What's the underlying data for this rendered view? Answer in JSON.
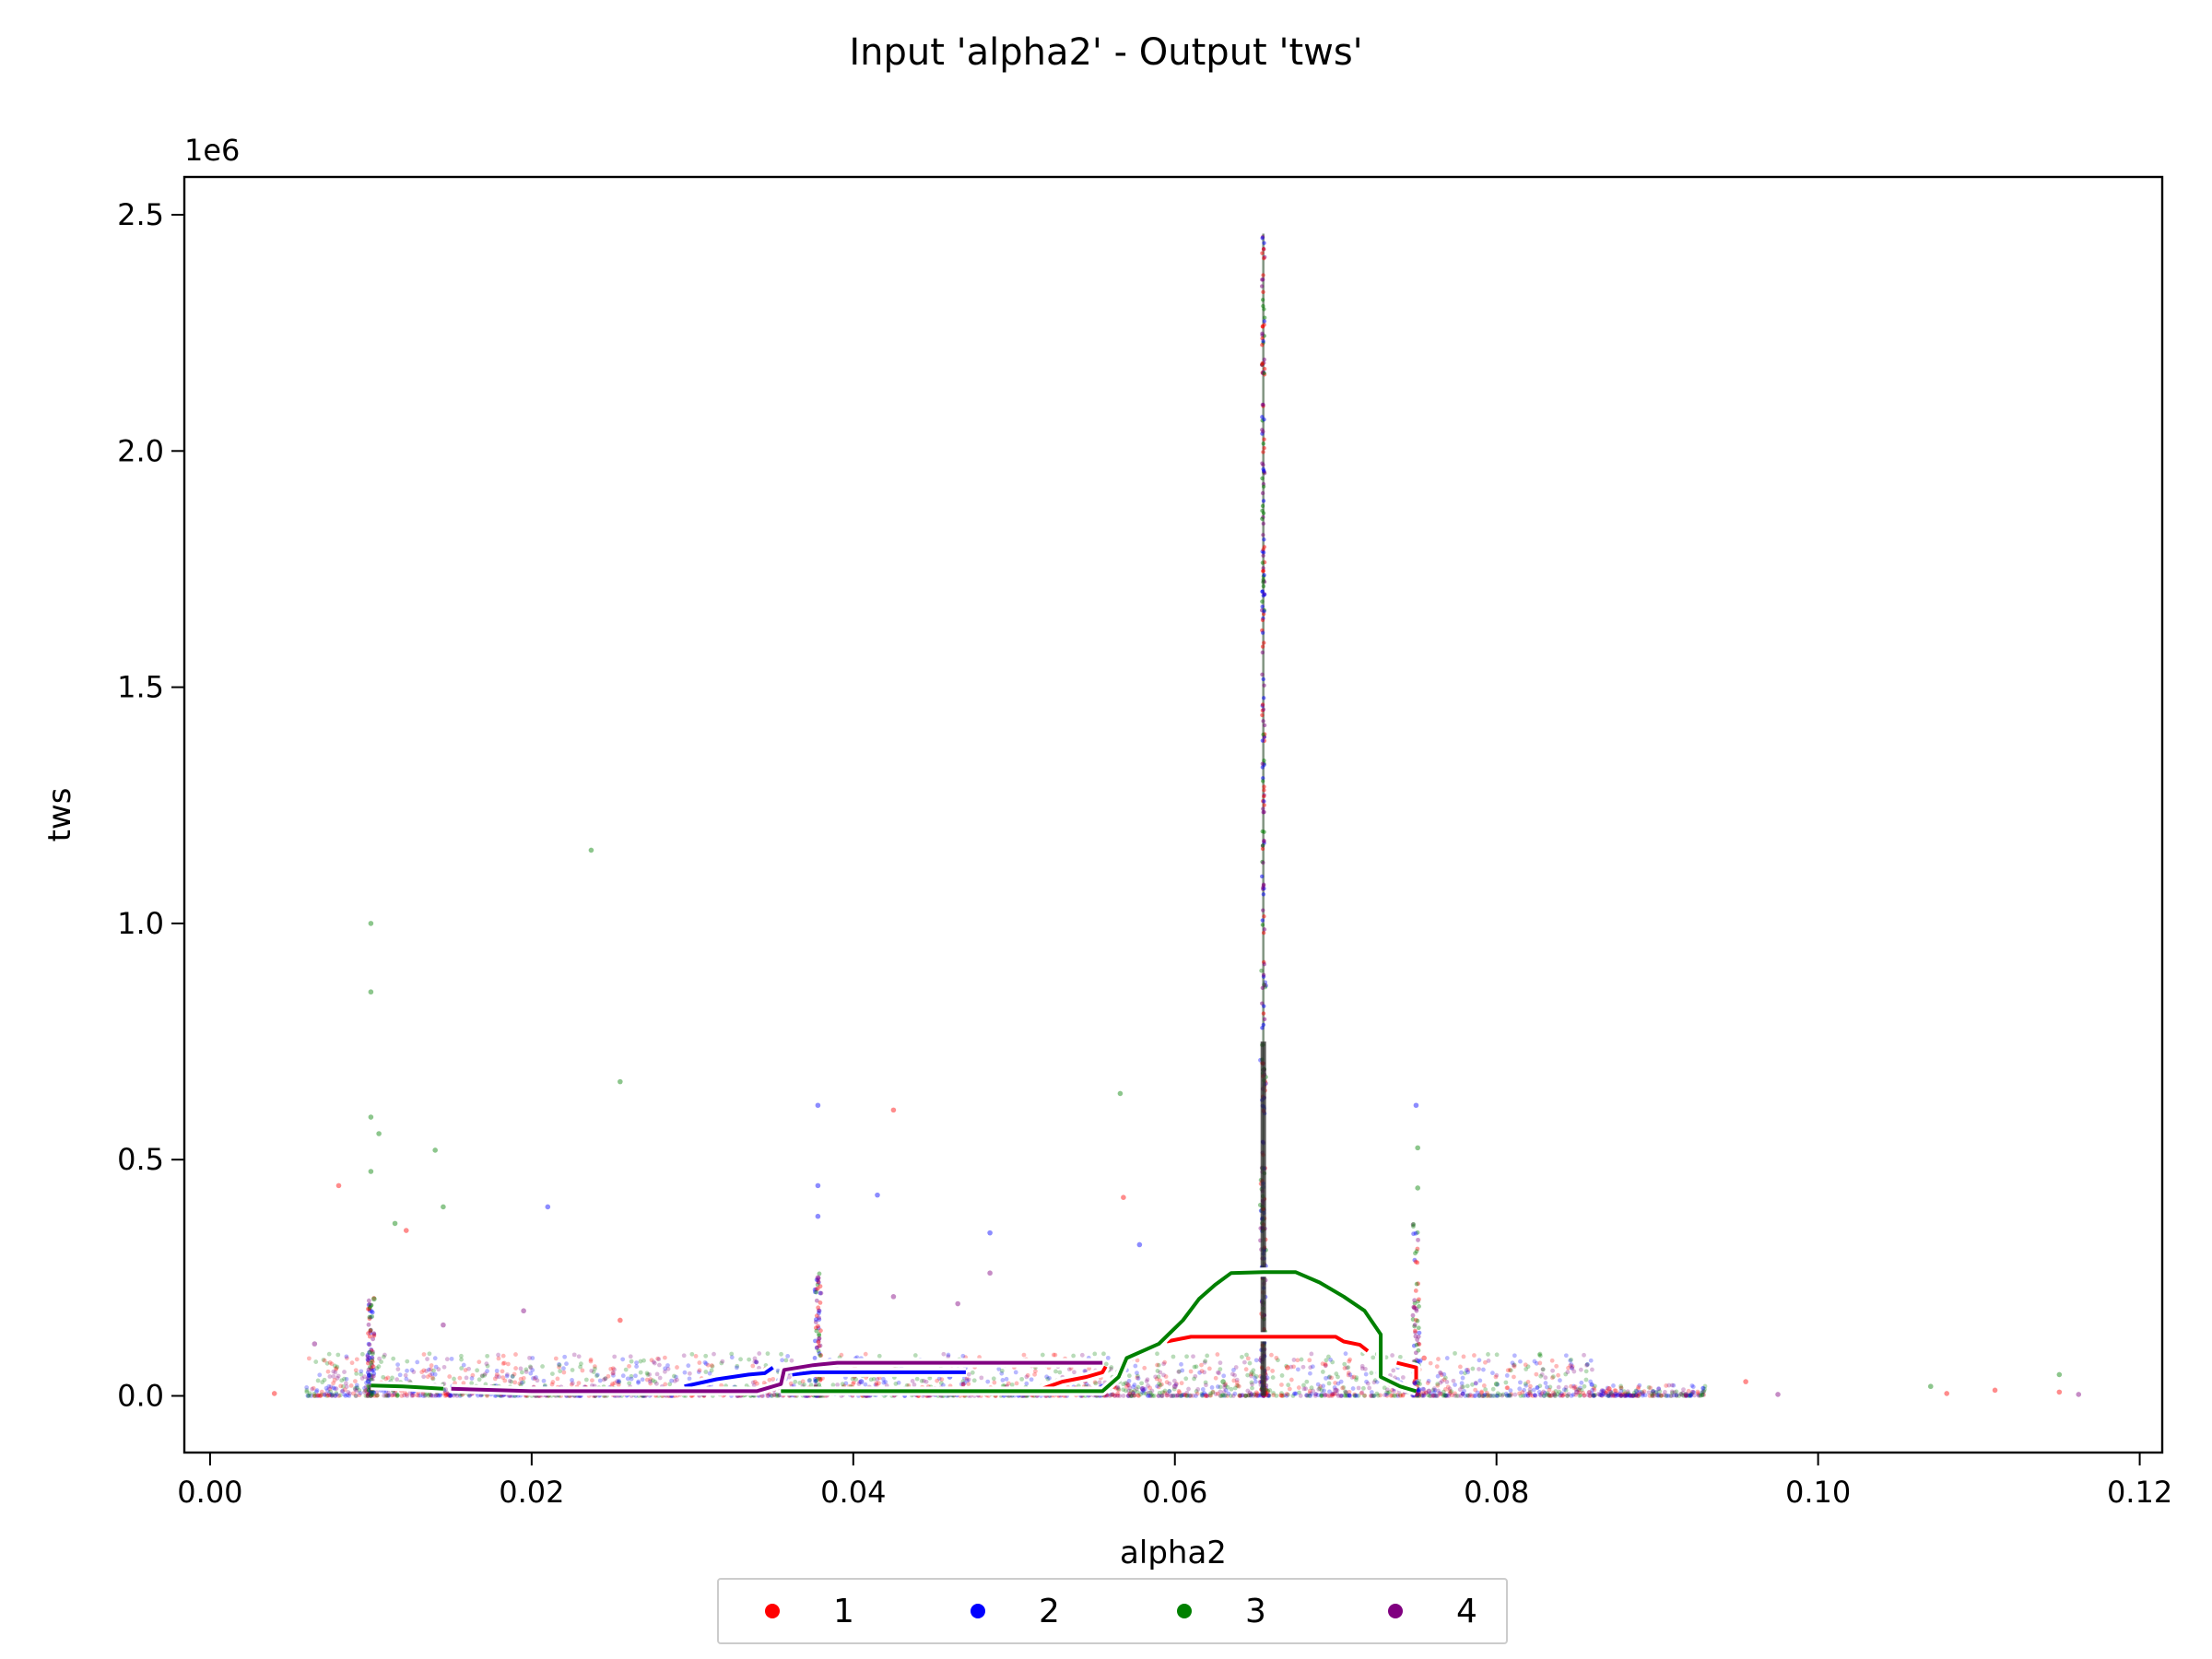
{
  "chart_data": {
    "type": "scatter",
    "title": "Input 'alpha2' - Output 'tws'",
    "xlabel": "alpha2",
    "ylabel": "tws",
    "y_multiplier_label": "1e6",
    "xlim": [
      -0.0016,
      0.1214
    ],
    "ylim": [
      -120000,
      2580000
    ],
    "xticks": [
      0.0,
      0.02,
      0.04,
      0.06,
      0.08,
      0.1,
      0.12
    ],
    "xtick_labels": [
      "0.00",
      "0.02",
      "0.04",
      "0.06",
      "0.08",
      "0.10",
      "0.12"
    ],
    "yticks": [
      0,
      500000,
      1000000,
      1500000,
      2000000,
      2500000
    ],
    "ytick_labels": [
      "0.0",
      "0.5",
      "1.0",
      "1.5",
      "2.0",
      "2.5"
    ],
    "grid": false,
    "legend_position": "bottom-center",
    "series": [
      {
        "name": "1",
        "color": "#ff0000",
        "points": [
          [
            0.004,
            5000
          ],
          [
            0.008,
            445000
          ],
          [
            0.0122,
            350000
          ],
          [
            0.0255,
            160000
          ],
          [
            0.0425,
            605000
          ],
          [
            0.0568,
            420000
          ],
          [
            0.067,
            60000
          ],
          [
            0.0755,
            80000
          ],
          [
            0.087,
            15000
          ],
          [
            0.0955,
            30000
          ],
          [
            0.108,
            5000
          ],
          [
            0.111,
            12000
          ],
          [
            0.115,
            8000
          ]
        ],
        "contour": [
          [
            0.0515,
            12000
          ],
          [
            0.053,
            30000
          ],
          [
            0.0545,
            40000
          ],
          [
            0.0555,
            50000
          ],
          [
            0.0557,
            62000
          ],
          [
            null,
            null
          ],
          [
            0.0595,
            115000
          ],
          [
            0.061,
            125000
          ],
          [
            0.0675,
            125000
          ],
          [
            0.07,
            125000
          ],
          [
            0.0705,
            115000
          ],
          [
            0.0715,
            108000
          ],
          [
            0.072,
            95000
          ],
          [
            null,
            null
          ],
          [
            0.0738,
            70000
          ],
          [
            0.075,
            60000
          ],
          [
            0.075,
            35000
          ]
        ]
      },
      {
        "name": "2",
        "color": "#0000ff",
        "points": [
          [
            0.0378,
            615000
          ],
          [
            0.0378,
            445000
          ],
          [
            0.0415,
            425000
          ],
          [
            0.0378,
            380000
          ],
          [
            0.021,
            400000
          ],
          [
            0.0485,
            345000
          ],
          [
            0.075,
            615000
          ],
          [
            0.0578,
            320000
          ],
          [
            0.0405,
            30000
          ],
          [
            0.046,
            40000
          ],
          [
            0.0555,
            20000
          ]
        ],
        "contour": [
          [
            0.0295,
            20000
          ],
          [
            0.0315,
            35000
          ],
          [
            0.0335,
            45000
          ],
          [
            0.0345,
            48000
          ],
          [
            0.035,
            60000
          ],
          [
            null,
            null
          ],
          [
            0.0362,
            45000
          ],
          [
            0.0375,
            50000
          ],
          [
            0.047,
            50000
          ]
        ]
      },
      {
        "name": "3",
        "color": "#008000",
        "points": [
          [
            0.0237,
            1155000
          ],
          [
            0.01,
            1000000
          ],
          [
            0.01,
            855000
          ],
          [
            0.01,
            590000
          ],
          [
            0.0105,
            555000
          ],
          [
            0.014,
            520000
          ],
          [
            0.0255,
            665000
          ],
          [
            0.0566,
            640000
          ],
          [
            0.0751,
            525000
          ],
          [
            0.0751,
            440000
          ],
          [
            0.0115,
            365000
          ],
          [
            0.0145,
            400000
          ],
          [
            0.01,
            475000
          ],
          [
            0.0102,
            205000
          ],
          [
            0.107,
            20000
          ],
          [
            0.115,
            45000
          ],
          [
            0.04,
            10000
          ],
          [
            0.063,
            30000
          ],
          [
            0.08,
            25000
          ]
        ],
        "contour": [
          [
            0.01,
            22000
          ],
          [
            0.012,
            20000
          ],
          [
            0.0145,
            15000
          ],
          [
            null,
            null
          ],
          [
            0.0355,
            10000
          ],
          [
            0.05,
            10000
          ],
          [
            0.0555,
            10000
          ],
          [
            0.0565,
            40000
          ],
          [
            0.057,
            80000
          ],
          [
            0.059,
            110000
          ],
          [
            0.0605,
            160000
          ],
          [
            0.0615,
            205000
          ],
          [
            0.0625,
            235000
          ],
          [
            0.0635,
            260000
          ],
          [
            0.0655,
            262000
          ],
          [
            0.0675,
            262000
          ],
          [
            0.069,
            240000
          ],
          [
            0.0705,
            210000
          ],
          [
            0.0718,
            180000
          ],
          [
            0.0728,
            130000
          ],
          [
            0.0728,
            40000
          ],
          [
            0.074,
            20000
          ],
          [
            0.075,
            10000
          ]
        ]
      },
      {
        "name": "4",
        "color": "#800080",
        "points": [
          [
            0.0065,
            110000
          ],
          [
            0.0195,
            180000
          ],
          [
            0.0378,
            250000
          ],
          [
            0.0425,
            210000
          ],
          [
            0.0465,
            195000
          ],
          [
            0.0485,
            260000
          ],
          [
            0.0145,
            150000
          ],
          [
            0.06,
            20000
          ],
          [
            0.0758,
            10000
          ],
          [
            0.085,
            8000
          ],
          [
            0.0918,
            3000
          ],
          [
            0.0975,
            3000
          ],
          [
            0.1162,
            3000
          ],
          [
            0.058,
            15000
          ],
          [
            0.07,
            12000
          ]
        ],
        "contour": [
          [
            0.015,
            15000
          ],
          [
            0.02,
            10000
          ],
          [
            0.034,
            10000
          ],
          [
            0.0355,
            25000
          ],
          [
            0.0357,
            55000
          ],
          [
            0.0375,
            65000
          ],
          [
            0.039,
            70000
          ],
          [
            0.0555,
            70000
          ]
        ]
      }
    ],
    "vertical_stripe": {
      "x": 0.0655,
      "ymin": 0,
      "ymax": 2460000
    }
  },
  "legend": {
    "items": [
      {
        "label": "1",
        "color": "#ff0000"
      },
      {
        "label": "2",
        "color": "#0000ff"
      },
      {
        "label": "3",
        "color": "#008000"
      },
      {
        "label": "4",
        "color": "#800080"
      }
    ]
  }
}
